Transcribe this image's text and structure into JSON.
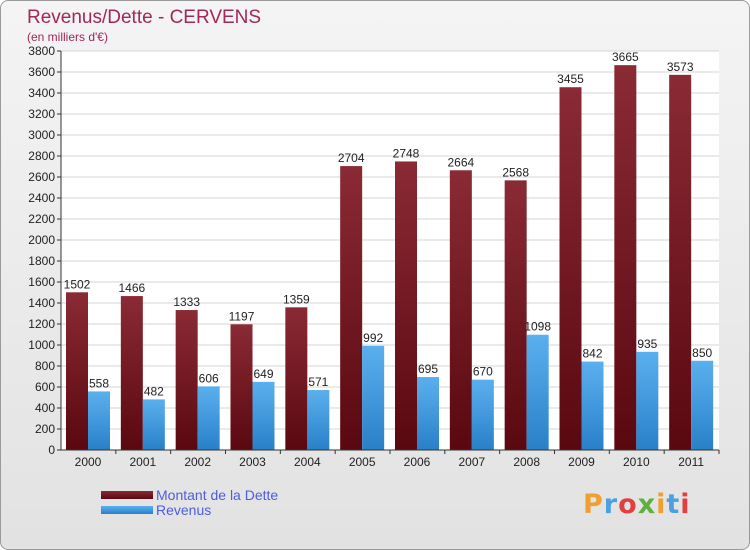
{
  "header": {
    "title": "Revenus/Dette - CERVENS",
    "subtitle": "(en milliers d'€)"
  },
  "legend": {
    "dette_label": "Montant de la Dette",
    "revenus_label": "Revenus"
  },
  "logo": {
    "text": "Proxiti",
    "letter_colors": [
      "#f0a030",
      "#4aa0e0",
      "#e04040",
      "#60b040",
      "#f0a030",
      "#4aa0e0",
      "#e04040"
    ]
  },
  "colors": {
    "dette": "#7a1a24",
    "revenus": "#3f9ae0",
    "title": "#a0285a",
    "legend_text": "#4c5ee0"
  },
  "chart_data": {
    "type": "bar",
    "categories": [
      "2000",
      "2001",
      "2002",
      "2003",
      "2004",
      "2005",
      "2006",
      "2007",
      "2008",
      "2009",
      "2010",
      "2011"
    ],
    "series": [
      {
        "name": "Montant de la Dette",
        "values": [
          1502,
          1466,
          1333,
          1197,
          1359,
          2704,
          2748,
          2664,
          2568,
          3455,
          3665,
          3573
        ]
      },
      {
        "name": "Revenus",
        "values": [
          558,
          482,
          606,
          649,
          571,
          992,
          695,
          670,
          1098,
          842,
          935,
          850
        ]
      }
    ],
    "ylim": [
      0,
      3800
    ],
    "yticks": [
      0,
      200,
      400,
      600,
      800,
      1000,
      1200,
      1400,
      1600,
      1800,
      2000,
      2200,
      2400,
      2600,
      2800,
      3000,
      3200,
      3400,
      3600,
      3800
    ],
    "grid": true,
    "legend_position": "bottom-left"
  }
}
